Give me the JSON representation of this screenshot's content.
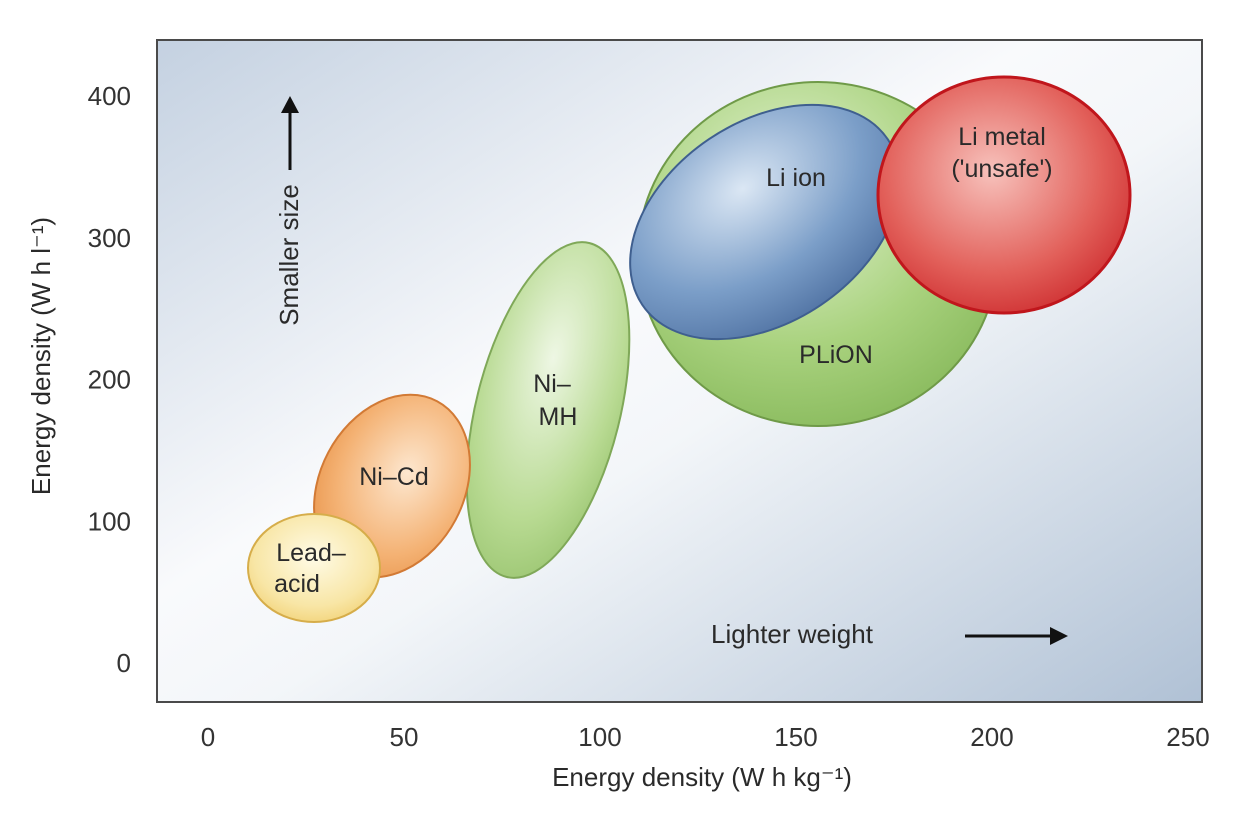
{
  "chart_data": {
    "type": "scatter",
    "xlabel": "Energy density (W h kg⁻¹)",
    "ylabel": "Energy density (W h l⁻¹)",
    "xlim": [
      0,
      250
    ],
    "ylim": [
      0,
      400
    ],
    "x_ticks": [
      "0",
      "50",
      "100",
      "150",
      "200",
      "250"
    ],
    "y_ticks": [
      "0",
      "100",
      "200",
      "300",
      "400"
    ],
    "grid": false,
    "regions": [
      {
        "name": "PLiON",
        "label_lines": [
          "PLiON"
        ],
        "center": [
          153,
          305
        ],
        "x_span": [
          108,
          201
        ],
        "y_span": [
          175,
          420
        ],
        "color": "#9ccb6e"
      },
      {
        "name": "Li ion",
        "label_lines": [
          "Li ion"
        ],
        "center": [
          145,
          320
        ],
        "x_span": [
          108,
          175
        ],
        "y_span": [
          230,
          415
        ],
        "color": "#5d84b3"
      },
      {
        "name": "Li metal ('unsafe')",
        "label_lines": [
          "Li metal",
          "('unsafe')"
        ],
        "center": [
          203,
          345
        ],
        "x_span": [
          170,
          235
        ],
        "y_span": [
          245,
          445
        ],
        "color": "#d62a2a"
      },
      {
        "name": "Ni–MH",
        "label_lines": [
          "Ni–",
          "MH"
        ],
        "center": [
          87,
          205
        ],
        "x_span": [
          67,
          106
        ],
        "y_span": [
          60,
          340
        ],
        "color": "#a9d27e"
      },
      {
        "name": "Ni–Cd",
        "label_lines": [
          "Ni–Cd"
        ],
        "center": [
          47,
          135
        ],
        "x_span": [
          27,
          66
        ],
        "y_span": [
          60,
          220
        ],
        "color": "#f0a45c"
      },
      {
        "name": "Lead–acid",
        "label_lines": [
          "Lead–",
          "acid"
        ],
        "center": [
          27,
          75
        ],
        "x_span": [
          10,
          44
        ],
        "y_span": [
          25,
          120
        ],
        "color": "#f3d77a"
      }
    ],
    "annotations": [
      {
        "text": "Smaller size",
        "direction": "up"
      },
      {
        "text": "Lighter weight",
        "direction": "right"
      }
    ]
  }
}
